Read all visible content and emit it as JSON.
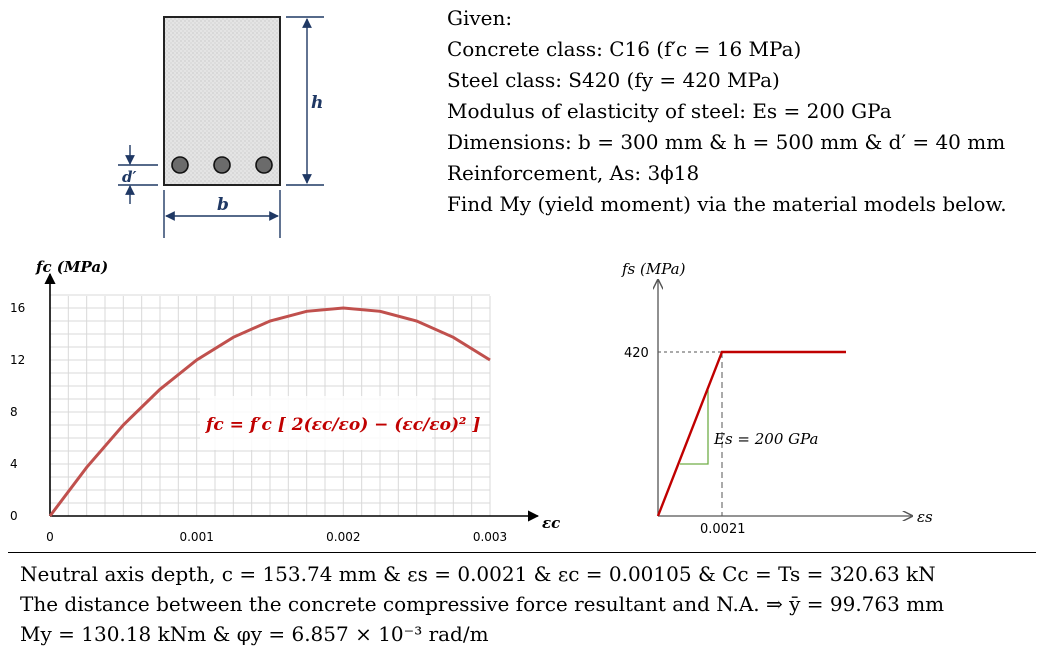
{
  "given": {
    "title": "Given:",
    "lines": [
      "Concrete class: C16 (f′c = 16 MPa)",
      "Steel class: S420 (fy = 420 MPa)",
      "Modulus of elasticity of steel: Es = 200 GPa",
      "Dimensions: b = 300 mm & h = 500 mm & d′ = 40 mm",
      "Reinforcement, As: 3ϕ18",
      "Find My (yield moment) via the material models below."
    ]
  },
  "section": {
    "label_h": "h",
    "label_b": "b",
    "label_d": "d′",
    "bar_count": 3
  },
  "concrete_chart": {
    "ylabel": "fc (MPa)",
    "xlabel": "εc",
    "formula": "fc = f′c [ 2(εc/εo) − (εc/εo)² ]",
    "x_ticks": [
      "0",
      "0.001",
      "0.002",
      "0.003"
    ],
    "y_ticks": [
      "0",
      "4",
      "8",
      "12",
      "16"
    ],
    "curve_color": "#c0504d"
  },
  "steel_chart": {
    "ylabel": "fs (MPa)",
    "xlabel": "εs",
    "fy_label": "420",
    "ey_label": "0.0021",
    "es_label": "Es = 200 GPa",
    "line_color": "#c00000",
    "triangle_color": "#70ad47"
  },
  "chart_data": [
    {
      "type": "line",
      "xlabel": "εc",
      "ylabel": "fc (MPa)",
      "xlim": [
        0,
        0.003
      ],
      "ylim": [
        0,
        16
      ],
      "grid": true,
      "series": [
        {
          "x": [
            0,
            0.00025,
            0.0005,
            0.00075,
            0.001,
            0.00125,
            0.0015,
            0.00175,
            0.002,
            0.00225,
            0.0025,
            0.00275,
            0.003
          ],
          "y": [
            0,
            3.75,
            7.0,
            9.75,
            12.0,
            13.75,
            15.0,
            15.75,
            16.0,
            15.75,
            15.0,
            13.75,
            12.0
          ]
        }
      ]
    },
    {
      "type": "line",
      "xlabel": "εs",
      "ylabel": "fs (MPa)",
      "grid": false,
      "series": [
        {
          "x": [
            0,
            0.0021,
            0.0065
          ],
          "y": [
            0,
            420,
            420
          ]
        }
      ]
    }
  ],
  "results": [
    "Neutral axis depth, c = 153.74 mm  &  εs = 0.0021  &  εc = 0.00105  &  Cc = Ts = 320.63 kN",
    "The distance between the concrete compressive force resultant and N.A. ⇒ ȳ = 99.763 mm",
    "My = 130.18 kNm  &  φy = 6.857 × 10⁻³ rad/m"
  ]
}
